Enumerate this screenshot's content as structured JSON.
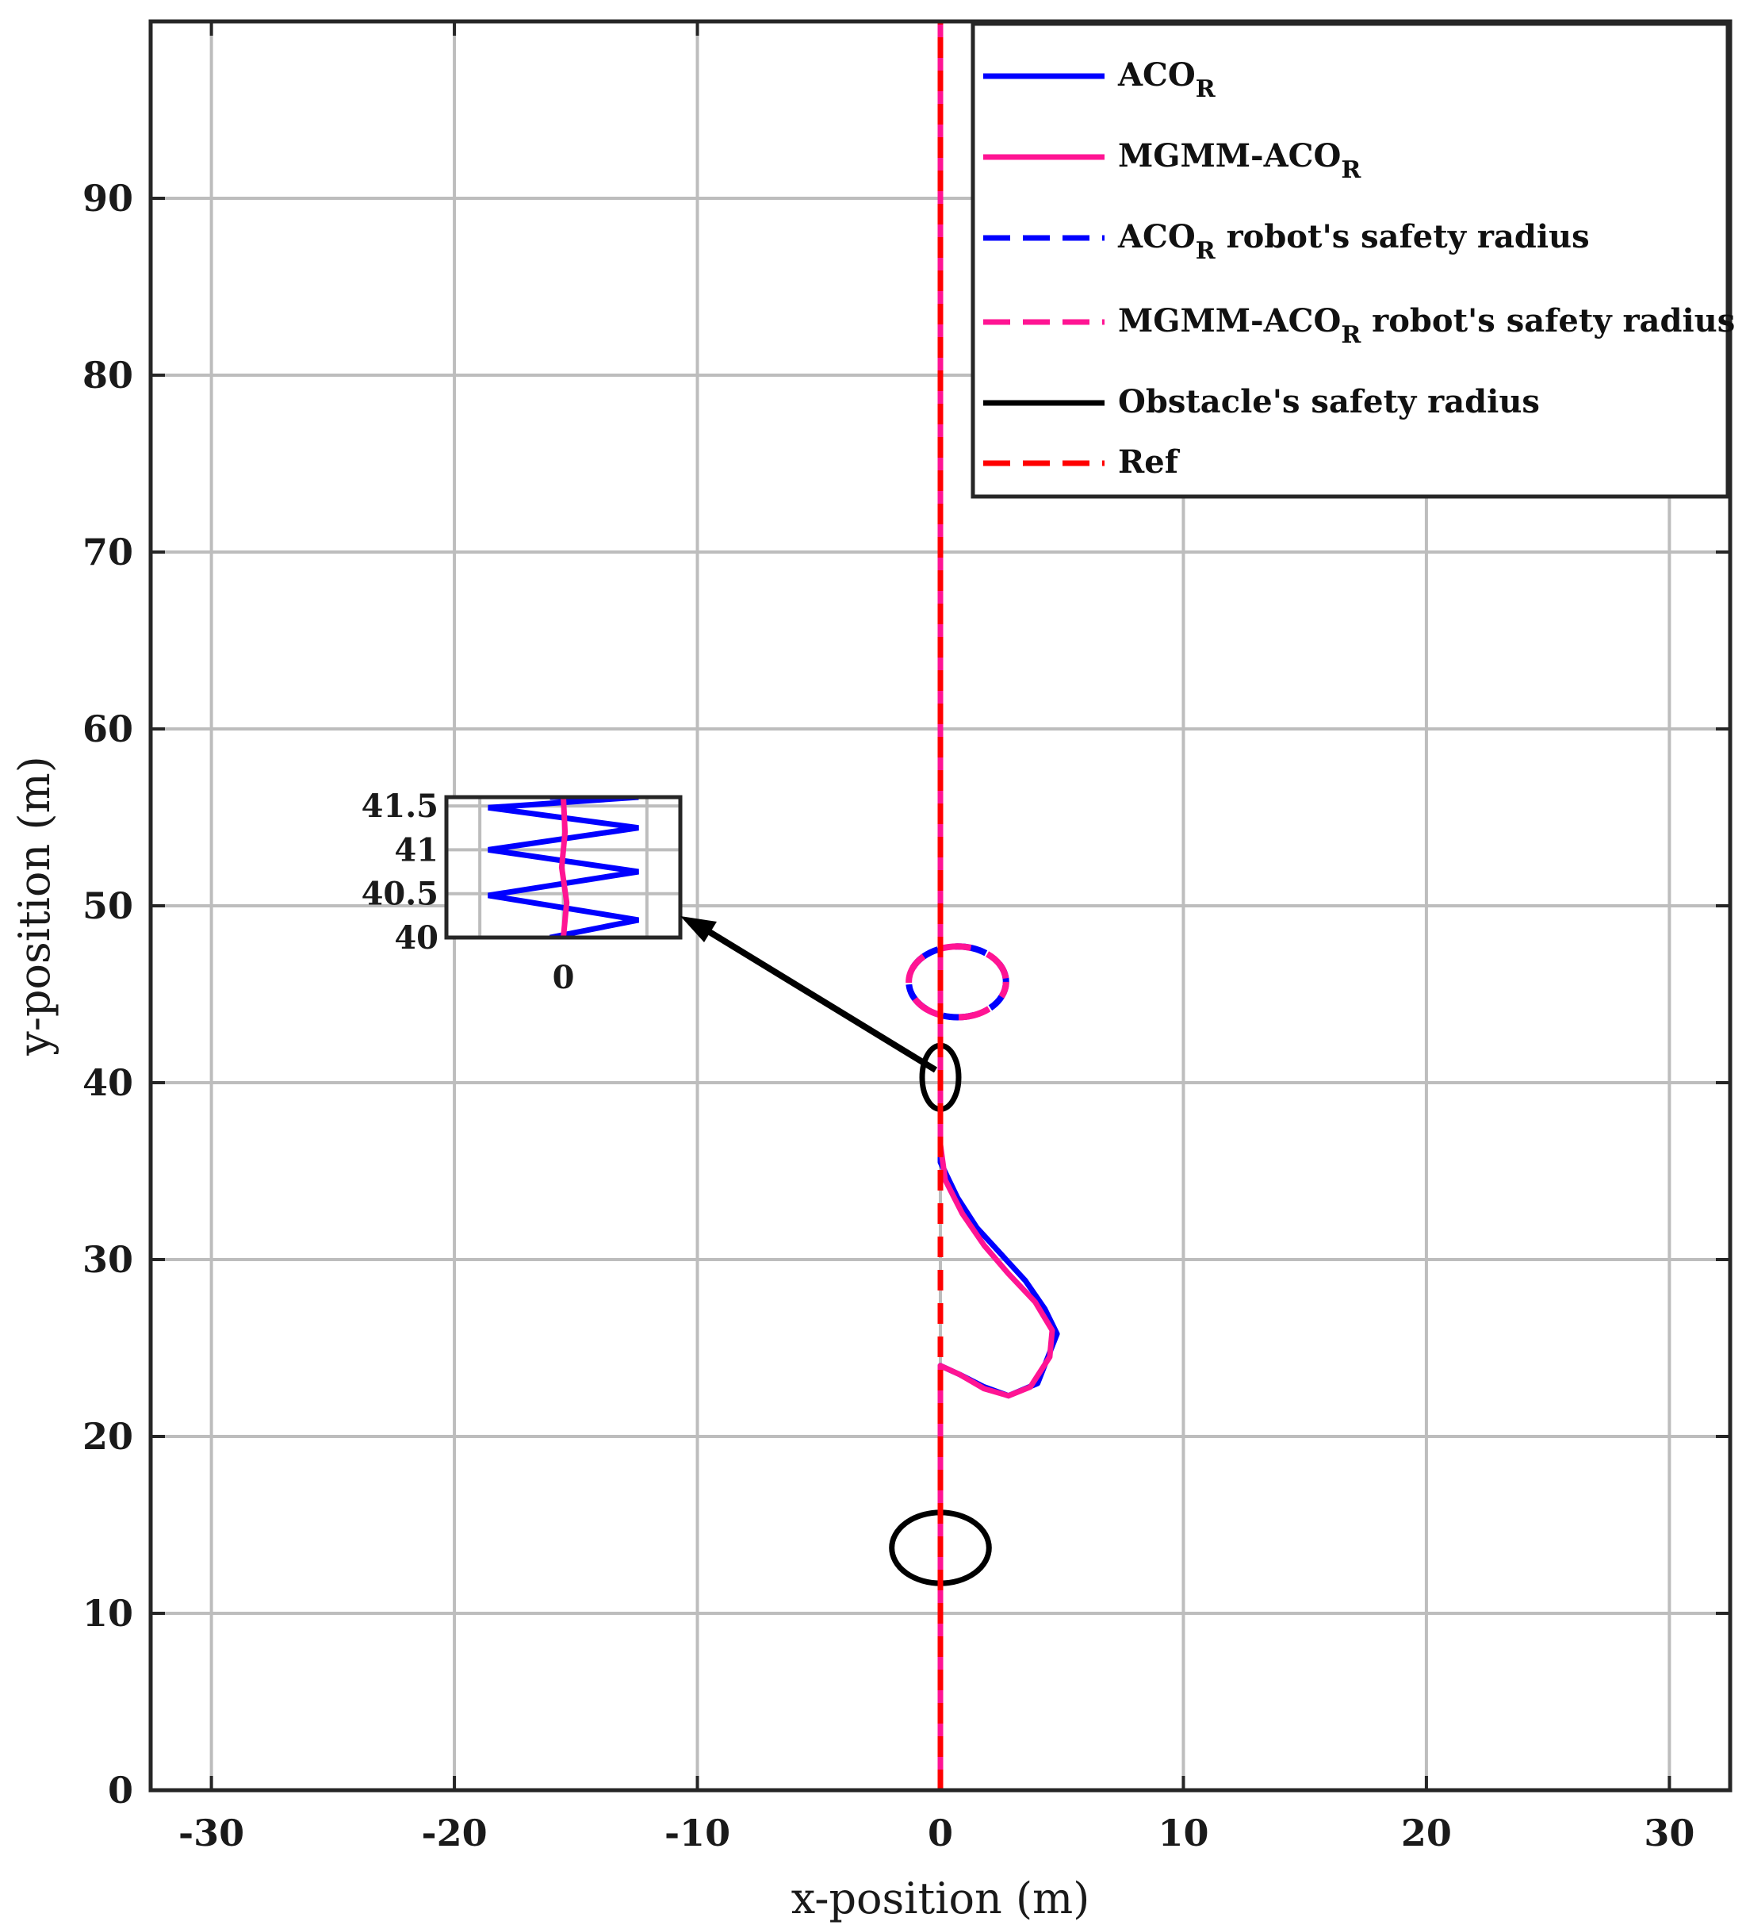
{
  "chart_data": {
    "type": "line",
    "xlabel": "x-position (m)",
    "ylabel": "y-position (m)",
    "xlim": [
      -32.5,
      32.5
    ],
    "ylim": [
      0,
      100
    ],
    "xticks": [
      -30,
      -20,
      -10,
      0,
      10,
      20,
      30
    ],
    "yticks": [
      0,
      10,
      20,
      30,
      40,
      50,
      60,
      70,
      80,
      90
    ],
    "grid": true,
    "legend_position": "top-right",
    "legend": [
      {
        "label": "ACO",
        "sub": "R",
        "suffix": "",
        "color": "#0000ff",
        "dash": "solid"
      },
      {
        "label": "MGMM-ACO",
        "sub": "R",
        "suffix": "",
        "color": "#ff1493",
        "dash": "solid"
      },
      {
        "label": "ACO",
        "sub": "R",
        "suffix": " robot's safety radius",
        "color": "#0000ff",
        "dash": "dashed"
      },
      {
        "label": "MGMM-ACO",
        "sub": "R",
        "suffix": "  robot's safety radius",
        "color": "#ff1493",
        "dash": "dashed"
      },
      {
        "label": "Obstacle's safety radius",
        "sub": "",
        "suffix": "",
        "color": "#000000",
        "dash": "solid"
      },
      {
        "label": "Ref",
        "sub": "",
        "suffix": "",
        "color": "#ff0000",
        "dash": "dashed"
      }
    ],
    "series": [
      {
        "name": "ACO_R",
        "color": "#0000ff",
        "x": [
          0,
          0,
          0.8,
          1.8,
          2.8,
          4.0,
          4.8,
          4.3,
          3.5,
          2.5,
          1.5,
          0.7,
          0,
          0,
          0,
          0
        ],
        "y": [
          0,
          24,
          23.5,
          22.8,
          22.3,
          23.0,
          25.8,
          27.2,
          28.8,
          30.3,
          31.8,
          33.5,
          35.5,
          40,
          42,
          100
        ]
      },
      {
        "name": "MGMM-ACO_R",
        "color": "#ff1493",
        "x": [
          0,
          0,
          0.8,
          1.8,
          2.8,
          3.7,
          4.5,
          4.6,
          3.9,
          2.8,
          1.8,
          0.9,
          0.2,
          0,
          0,
          0
        ],
        "y": [
          0,
          24,
          23.5,
          22.7,
          22.3,
          22.8,
          24.5,
          26.0,
          27.6,
          29.2,
          30.8,
          32.6,
          34.5,
          36.5,
          42,
          100
        ]
      },
      {
        "name": "Ref",
        "color": "#ff0000",
        "x": [
          0,
          0
        ],
        "y": [
          0,
          100
        ]
      }
    ],
    "robot_safety_radius": [
      {
        "name": "ACO_R robot's safety radius",
        "color": "#0000ff",
        "center": [
          0.7,
          45.7
        ],
        "rx": 2,
        "ry": 2
      },
      {
        "name": "MGMM-ACO_R robot's safety radius",
        "color": "#ff1493",
        "center": [
          0.7,
          45.7
        ],
        "rx": 2,
        "ry": 2
      }
    ],
    "obstacles": [
      {
        "center": [
          0,
          13.7
        ],
        "rx": 2,
        "ry": 2
      },
      {
        "center": [
          0,
          40.3
        ],
        "rx": 0.75,
        "ry": 1.8
      }
    ],
    "inset": {
      "xlim": [
        -0.7,
        0.7
      ],
      "ylim": [
        40,
        41.6
      ],
      "xticks": [
        0
      ],
      "yticks": [
        40,
        40.5,
        41,
        41.5
      ],
      "ytick_labels": [
        "40",
        "40.5",
        "41",
        "41.5"
      ],
      "xtick_labels": [
        "0"
      ],
      "aco_x": [
        -0.08,
        0.45,
        -0.45,
        0.45,
        -0.45,
        0.45,
        -0.45,
        0.45,
        -0.08
      ],
      "aco_y": [
        40.0,
        40.2,
        40.48,
        40.75,
        41.0,
        41.25,
        41.48,
        41.6,
        41.6
      ],
      "mgmm_x": [
        0,
        0.02,
        -0.01,
        0.01,
        0
      ],
      "mgmm_y": [
        40.0,
        40.4,
        40.8,
        41.2,
        41.6
      ]
    }
  }
}
